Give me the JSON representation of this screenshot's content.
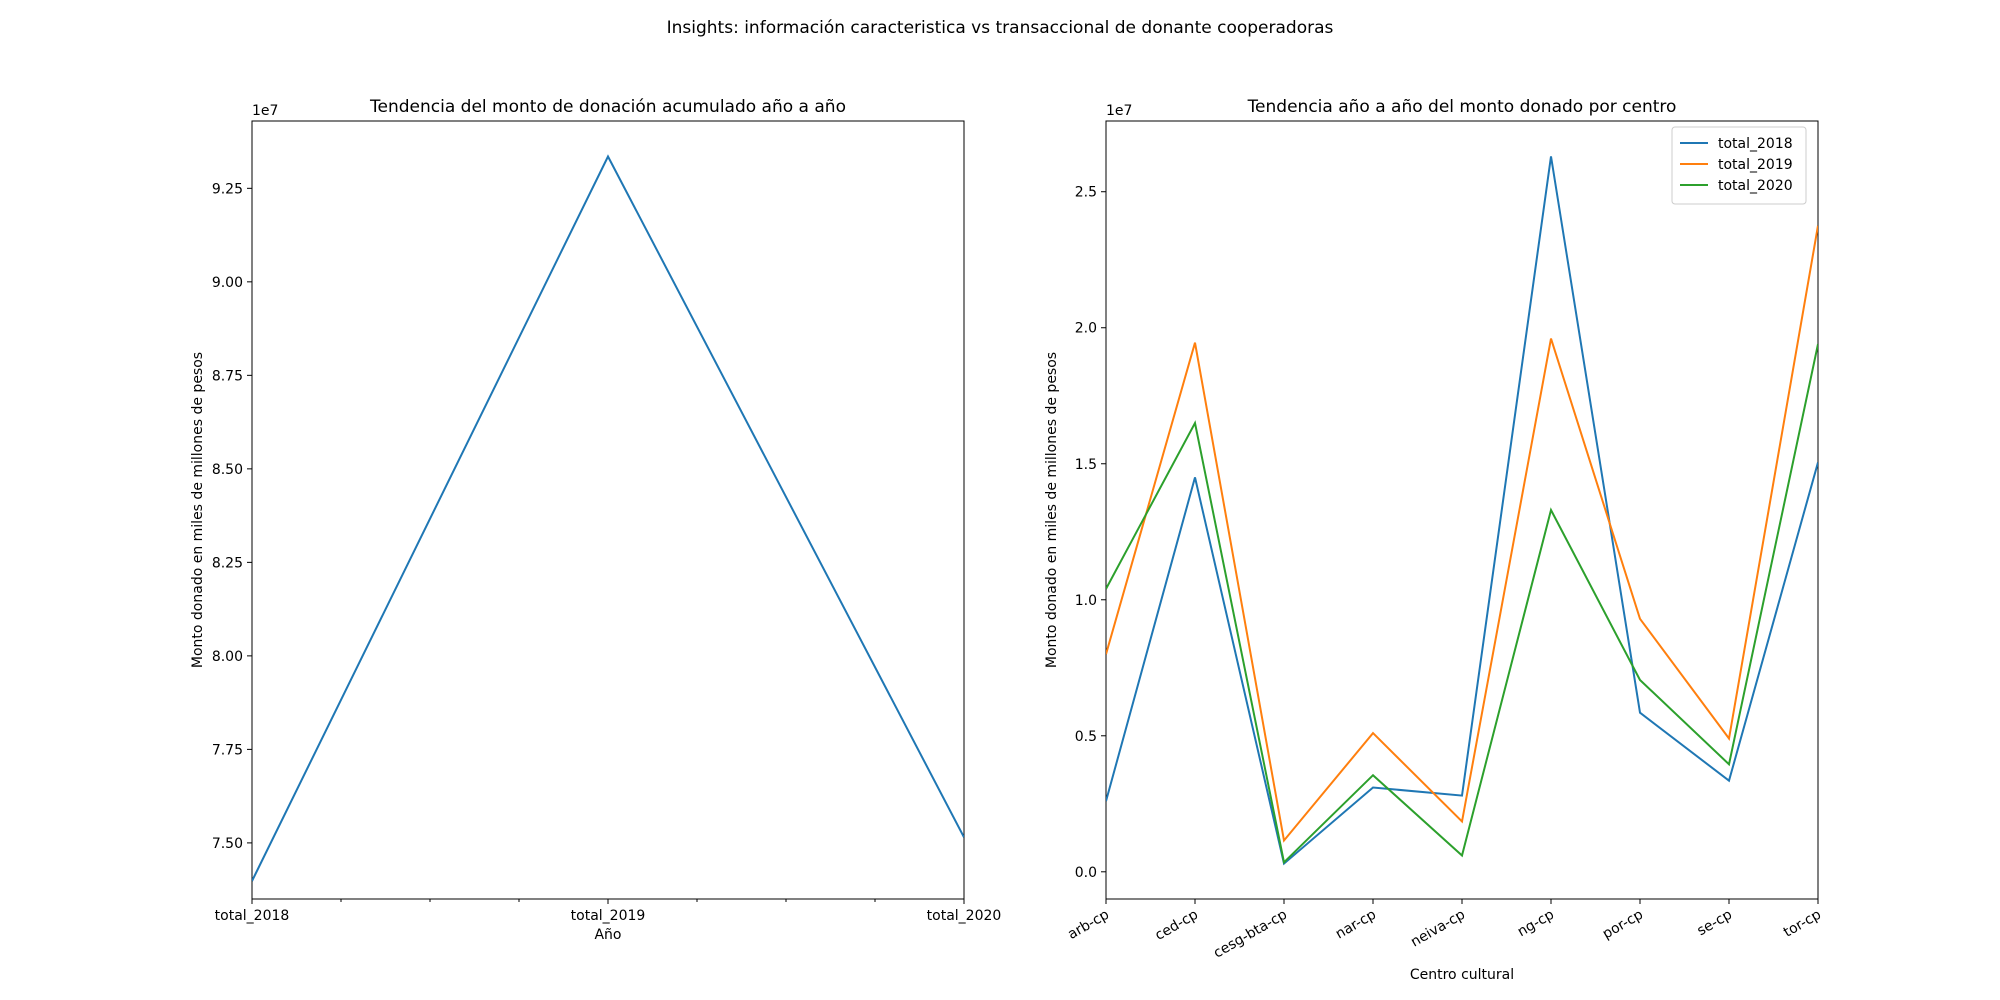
{
  "figure": {
    "title": "Insights: información caracteristica vs transaccional de donante cooperadoras"
  },
  "chart_data": [
    {
      "type": "line",
      "title": "Tendencia del monto de donación acumulado año a año",
      "xlabel": "Año",
      "ylabel": "Monto donado en miles de millones de pesos",
      "y_offset_label": "1e7",
      "categories": [
        "total_2018",
        "total_2019",
        "total_2020"
      ],
      "series": [
        {
          "name": "",
          "values": [
            73980000,
            93350000,
            75150000
          ]
        }
      ],
      "ylim": [
        73500000,
        94300000
      ],
      "yticks": [
        75000000,
        77500000,
        80000000,
        82500000,
        85000000,
        87500000,
        90000000,
        92500000
      ],
      "ytick_labels": [
        "7.50",
        "7.75",
        "8.00",
        "8.25",
        "8.50",
        "8.75",
        "9.00",
        "9.25"
      ],
      "minor_xticks": 9,
      "colors": [
        "#1f77b4"
      ],
      "grid": false,
      "legend": "none"
    },
    {
      "type": "line",
      "title": "Tendencia año a año del monto donado por centro",
      "xlabel": "Centro cultural",
      "ylabel": "Monto donado en miles de millones de pesos",
      "y_offset_label": "1e7",
      "categories": [
        "arb-cp",
        "ced-cp",
        "cesg-bta-cp",
        "nar-cp",
        "neiva-cp",
        "ng-cp",
        "por-cp",
        "se-cp",
        "tor-cp"
      ],
      "series": [
        {
          "name": "total_2018",
          "values": [
            2600000,
            14500000,
            300000,
            3100000,
            2800000,
            26300000,
            5850000,
            3350000,
            15050000
          ]
        },
        {
          "name": "total_2019",
          "values": [
            8000000,
            19450000,
            1150000,
            5100000,
            1850000,
            19600000,
            9300000,
            4900000,
            23750000
          ]
        },
        {
          "name": "total_2020",
          "values": [
            10400000,
            16500000,
            350000,
            3550000,
            600000,
            13300000,
            7050000,
            3950000,
            19400000
          ]
        }
      ],
      "ylim": [
        -1000000,
        27600000
      ],
      "yticks": [
        0,
        5000000,
        10000000,
        15000000,
        20000000,
        25000000
      ],
      "ytick_labels": [
        "0.0",
        "0.5",
        "1.0",
        "1.5",
        "2.0",
        "2.5"
      ],
      "colors": [
        "#1f77b4",
        "#ff7f0e",
        "#2ca02c"
      ],
      "grid": false,
      "legend": "top-right"
    }
  ]
}
